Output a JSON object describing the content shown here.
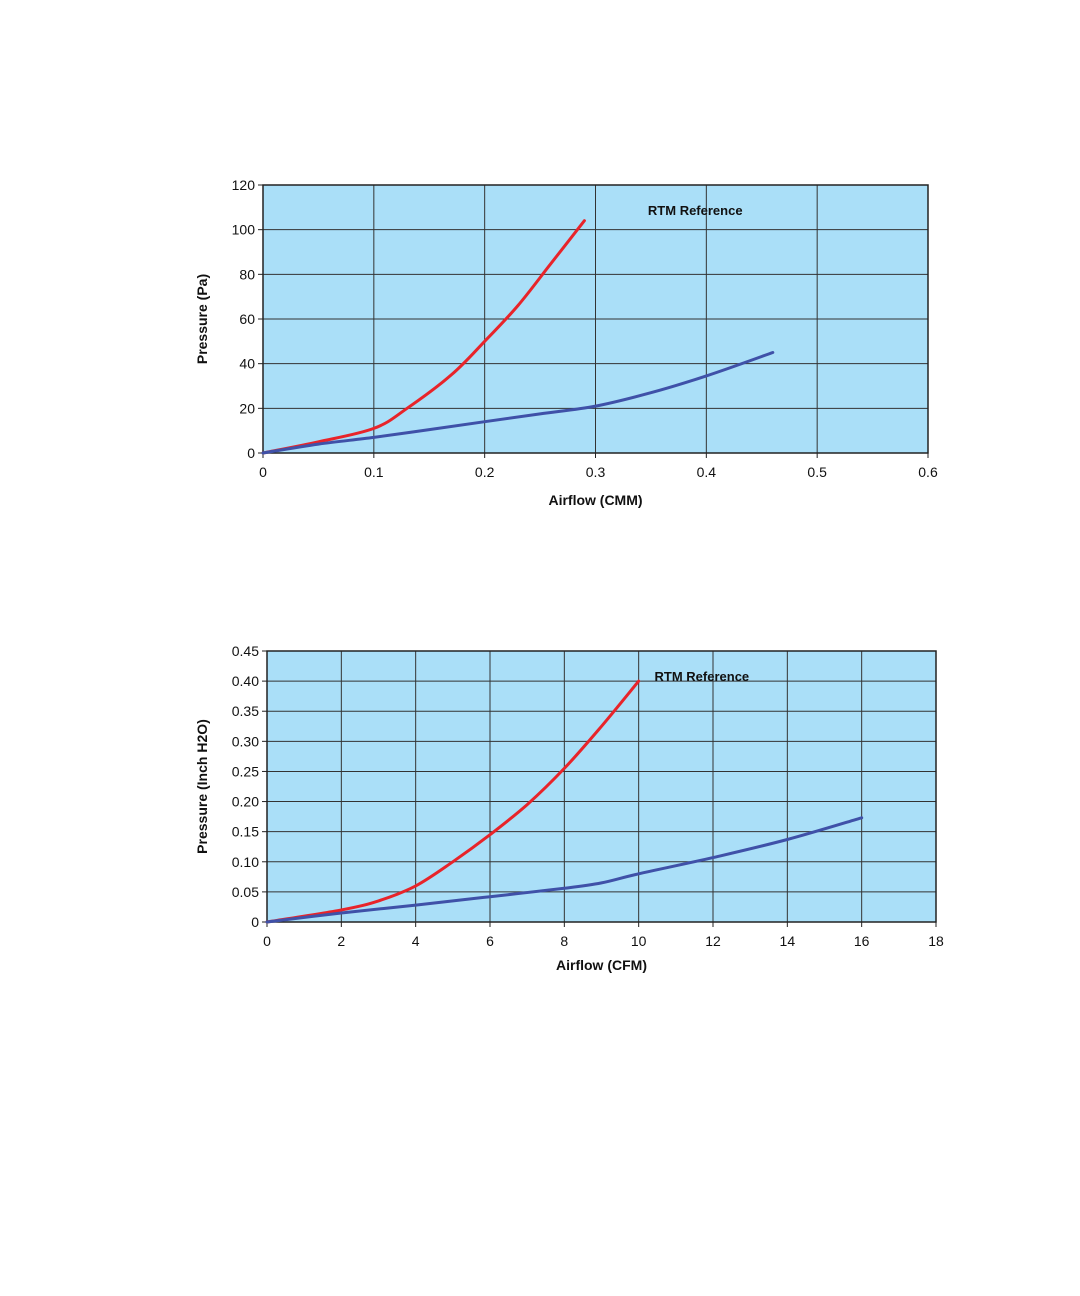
{
  "chart_data": [
    {
      "type": "line",
      "xlabel": "Airflow (CMM)",
      "ylabel": "Pressure (Pa)",
      "annotation": "RTM Reference",
      "xlim": [
        0,
        0.6
      ],
      "ylim": [
        0,
        120
      ],
      "xticks": [
        "0",
        "0.1",
        "0.2",
        "0.3",
        "0.4",
        "0.5",
        "0.6"
      ],
      "xtick_values": [
        0,
        0.1,
        0.2,
        0.3,
        0.4,
        0.5,
        0.6
      ],
      "yticks": [
        "0",
        "20",
        "40",
        "60",
        "80",
        "100",
        "120"
      ],
      "ytick_values": [
        0,
        20,
        40,
        60,
        80,
        100,
        120
      ],
      "grid": true,
      "background_color": "#aadff8",
      "series": [
        {
          "color": "#e8242a",
          "x": [
            0,
            0.05,
            0.1,
            0.13,
            0.17,
            0.2,
            0.23,
            0.26,
            0.29
          ],
          "y": [
            0,
            5,
            11,
            20,
            35,
            50,
            66,
            85,
            104
          ]
        },
        {
          "color": "#3f51a8",
          "x": [
            0,
            0.05,
            0.1,
            0.15,
            0.2,
            0.25,
            0.3,
            0.35,
            0.4,
            0.46
          ],
          "y": [
            0,
            4,
            7,
            10.5,
            14,
            17.5,
            21,
            27,
            34.5,
            45
          ]
        }
      ]
    },
    {
      "type": "line",
      "xlabel": "Airflow (CFM)",
      "ylabel": "Pressure (Inch H2O)",
      "annotation": "RTM Reference",
      "xlim": [
        0,
        18
      ],
      "ylim": [
        0,
        0.45
      ],
      "xticks": [
        "0",
        "2",
        "4",
        "6",
        "8",
        "10",
        "12",
        "14",
        "16",
        "18"
      ],
      "xtick_values": [
        0,
        2,
        4,
        6,
        8,
        10,
        12,
        14,
        16,
        18
      ],
      "yticks": [
        "0",
        "0.05",
        "0.10",
        "0.15",
        "0.20",
        "0.25",
        "0.30",
        "0.35",
        "0.40",
        "0.45"
      ],
      "ytick_values": [
        0,
        0.05,
        0.1,
        0.15,
        0.2,
        0.25,
        0.3,
        0.35,
        0.4,
        0.45
      ],
      "grid": true,
      "background_color": "#aadff8",
      "series": [
        {
          "color": "#e8242a",
          "x": [
            0,
            2,
            3,
            4,
            5,
            6,
            7,
            8,
            9,
            10
          ],
          "y": [
            0,
            0.02,
            0.035,
            0.06,
            0.1,
            0.145,
            0.195,
            0.255,
            0.325,
            0.4
          ]
        },
        {
          "color": "#3f51a8",
          "x": [
            0,
            2,
            4,
            6,
            8,
            9,
            10,
            12,
            14,
            16
          ],
          "y": [
            0,
            0.015,
            0.028,
            0.042,
            0.056,
            0.065,
            0.08,
            0.107,
            0.137,
            0.173
          ]
        }
      ]
    }
  ]
}
